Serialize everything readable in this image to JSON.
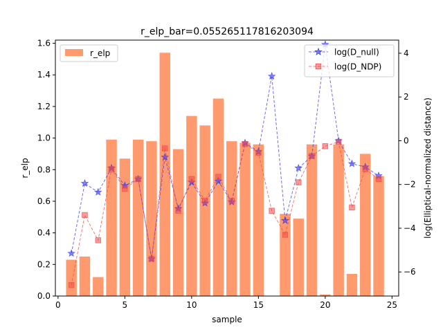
{
  "chart_data": {
    "type": "bar",
    "title": "r_elp_bar=0.055265117816203094",
    "xlabel": "sample",
    "ylabel_left": "r_elp",
    "ylabel_right": "log(Elliptical-normalized distance)",
    "xlim": [
      -0.2,
      25.5
    ],
    "ylim_left": [
      0,
      1.62
    ],
    "ylim_right": [
      -7.1,
      4.6
    ],
    "x_ticks": [
      0,
      5,
      10,
      15,
      20,
      25
    ],
    "y_ticks_left": [
      0.0,
      0.2,
      0.4,
      0.6,
      0.8,
      1.0,
      1.2,
      1.4,
      1.6
    ],
    "y_ticks_right": [
      -6,
      -4,
      -2,
      0,
      2,
      4
    ],
    "grid": false,
    "bar_series": {
      "name": "r_elp",
      "color": "#ff9a6e",
      "x": [
        1,
        2,
        3,
        4,
        5,
        6,
        7,
        8,
        9,
        10,
        11,
        12,
        13,
        14,
        15,
        16,
        17,
        18,
        19,
        20,
        21,
        22,
        23,
        24
      ],
      "values": [
        0.23,
        0.25,
        0.12,
        0.99,
        0.87,
        0.99,
        0.98,
        1.54,
        0.93,
        1.14,
        1.08,
        1.25,
        0.98,
        0.97,
        0.96,
        0.0,
        0.52,
        0.49,
        0.96,
        0.01,
        0.96,
        0.14,
        0.9,
        0.76
      ]
    },
    "line_series": [
      {
        "name": "log(D_null)",
        "color": "#3b3bf0",
        "marker": "star",
        "x": [
          1,
          2,
          3,
          4,
          5,
          6,
          7,
          8,
          9,
          10,
          11,
          12,
          13,
          14,
          15,
          16,
          17,
          18,
          19,
          20,
          21,
          22,
          23,
          24
        ],
        "values": [
          -5.15,
          -1.95,
          -2.35,
          -1.25,
          -2.05,
          -1.75,
          -5.4,
          -0.75,
          -3.1,
          -1.9,
          -2.85,
          -1.85,
          -2.8,
          -0.1,
          -0.5,
          2.95,
          -3.65,
          -1.25,
          -0.7,
          4.4,
          0.0,
          -1.05,
          -1.2,
          -1.6
        ]
      },
      {
        "name": "log(D_NDP)",
        "color": "#f04a4a",
        "marker": "square",
        "x": [
          1,
          2,
          3,
          4,
          5,
          6,
          7,
          8,
          9,
          10,
          11,
          12,
          13,
          14,
          15,
          16,
          17,
          18,
          19,
          20,
          21,
          22,
          23,
          24
        ],
        "values": [
          -6.6,
          -3.4,
          -4.55,
          -1.3,
          -2.2,
          -1.75,
          -5.4,
          -0.35,
          -3.2,
          -1.75,
          -2.75,
          -1.65,
          -2.75,
          -0.15,
          -0.55,
          -3.2,
          -4.3,
          -1.9,
          -0.7,
          -0.25,
          -0.05,
          -3.05,
          -1.3,
          -1.75
        ]
      }
    ],
    "legends": {
      "left": "upper-left",
      "right": "upper-right"
    }
  }
}
